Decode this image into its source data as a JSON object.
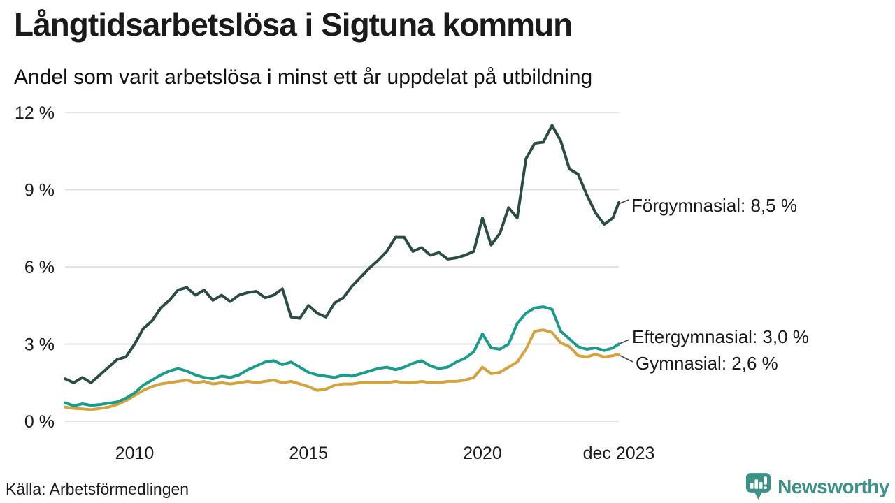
{
  "colors": {
    "forgymnasial_line": "#2b4c44",
    "eftergymnasial_line": "#1a9c8c",
    "gymnasial_line": "#d5a33d",
    "grid": "#e2e2e4",
    "text": "#1a1a1a",
    "brand_teal": "#3b9187",
    "connector": "#444444"
  },
  "chart_data": {
    "type": "line",
    "title": "Långtidsarbetslösa i Sigtuna kommun",
    "subtitle": "Andel som varit arbetslösa i minst ett år uppdelat på utbildning",
    "xlabel": "",
    "ylabel": "",
    "ylim": [
      0,
      12
    ],
    "xlim": [
      2008.0,
      2023.92
    ],
    "grid": true,
    "legend_position": "end-of-line-labels",
    "y_ticks": [
      {
        "value": 12,
        "label": "12 %"
      },
      {
        "value": 9,
        "label": "9 %"
      },
      {
        "value": 6,
        "label": "6 %"
      },
      {
        "value": 3,
        "label": "3 %"
      },
      {
        "value": 0,
        "label": "0 %"
      }
    ],
    "x_ticks": [
      {
        "value": 2010,
        "label": "2010"
      },
      {
        "value": 2015,
        "label": "2015"
      },
      {
        "value": 2020,
        "label": "2020"
      },
      {
        "value": 2023.92,
        "label": "dec 2023"
      }
    ],
    "x": [
      2008.0,
      2008.25,
      2008.5,
      2008.75,
      2009.0,
      2009.25,
      2009.5,
      2009.75,
      2010.0,
      2010.25,
      2010.5,
      2010.75,
      2011.0,
      2011.25,
      2011.5,
      2011.75,
      2012.0,
      2012.25,
      2012.5,
      2012.75,
      2013.0,
      2013.25,
      2013.5,
      2013.75,
      2014.0,
      2014.25,
      2014.5,
      2014.75,
      2015.0,
      2015.25,
      2015.5,
      2015.75,
      2016.0,
      2016.25,
      2016.5,
      2016.75,
      2017.0,
      2017.25,
      2017.5,
      2017.75,
      2018.0,
      2018.25,
      2018.5,
      2018.75,
      2019.0,
      2019.25,
      2019.5,
      2019.75,
      2020.0,
      2020.25,
      2020.5,
      2020.75,
      2021.0,
      2021.25,
      2021.5,
      2021.75,
      2022.0,
      2022.25,
      2022.5,
      2022.75,
      2023.0,
      2023.25,
      2023.5,
      2023.75,
      2023.92
    ],
    "series": [
      {
        "name": "Förgymnasial",
        "end_label": "Förgymnasial: 8,5 %",
        "end_value_text": "8,5 %",
        "color": "#2b4c44",
        "values": [
          1.65,
          1.5,
          1.7,
          1.5,
          1.8,
          2.1,
          2.4,
          2.5,
          3.0,
          3.6,
          3.9,
          4.4,
          4.7,
          5.1,
          5.2,
          4.9,
          5.1,
          4.7,
          4.9,
          4.65,
          4.9,
          5.0,
          5.05,
          4.8,
          4.9,
          5.15,
          4.05,
          4.0,
          4.5,
          4.2,
          4.05,
          4.6,
          4.8,
          5.25,
          5.6,
          5.95,
          6.25,
          6.6,
          7.15,
          7.15,
          6.6,
          6.75,
          6.45,
          6.55,
          6.3,
          6.35,
          6.45,
          6.6,
          7.9,
          6.85,
          7.3,
          8.3,
          7.9,
          10.2,
          10.8,
          10.85,
          11.5,
          10.9,
          9.8,
          9.6,
          8.8,
          8.1,
          7.65,
          7.9,
          8.5
        ]
      },
      {
        "name": "Eftergymnasial",
        "end_label": "Eftergymnasial: 3,0 %",
        "end_value_text": "3,0 %",
        "color": "#1a9c8c",
        "values": [
          0.72,
          0.6,
          0.68,
          0.62,
          0.65,
          0.7,
          0.75,
          0.9,
          1.1,
          1.4,
          1.6,
          1.8,
          1.95,
          2.05,
          1.95,
          1.8,
          1.7,
          1.65,
          1.75,
          1.7,
          1.8,
          2.0,
          2.15,
          2.3,
          2.35,
          2.2,
          2.3,
          2.1,
          1.9,
          1.8,
          1.75,
          1.7,
          1.8,
          1.75,
          1.85,
          1.95,
          2.05,
          2.1,
          2.0,
          2.1,
          2.25,
          2.35,
          2.15,
          2.05,
          2.1,
          2.3,
          2.45,
          2.7,
          3.4,
          2.85,
          2.8,
          3.0,
          3.8,
          4.2,
          4.4,
          4.45,
          4.35,
          3.5,
          3.2,
          2.9,
          2.8,
          2.85,
          2.75,
          2.85,
          3.0
        ]
      },
      {
        "name": "Gymnasial",
        "end_label": "Gymnasial: 2,6 %",
        "end_value_text": "2,6 %",
        "color": "#d5a33d",
        "values": [
          0.55,
          0.5,
          0.48,
          0.45,
          0.5,
          0.55,
          0.65,
          0.8,
          1.0,
          1.2,
          1.35,
          1.45,
          1.5,
          1.55,
          1.6,
          1.5,
          1.55,
          1.45,
          1.5,
          1.45,
          1.5,
          1.55,
          1.5,
          1.55,
          1.6,
          1.5,
          1.55,
          1.45,
          1.35,
          1.2,
          1.25,
          1.4,
          1.45,
          1.45,
          1.5,
          1.5,
          1.5,
          1.5,
          1.55,
          1.5,
          1.5,
          1.55,
          1.5,
          1.5,
          1.55,
          1.55,
          1.6,
          1.7,
          2.1,
          1.85,
          1.9,
          2.1,
          2.3,
          2.8,
          3.5,
          3.55,
          3.45,
          3.05,
          2.9,
          2.55,
          2.5,
          2.6,
          2.5,
          2.55,
          2.6
        ]
      }
    ]
  },
  "footer": {
    "source": "Källa: Arbetsförmedlingen",
    "brand": "Newsworthy"
  }
}
